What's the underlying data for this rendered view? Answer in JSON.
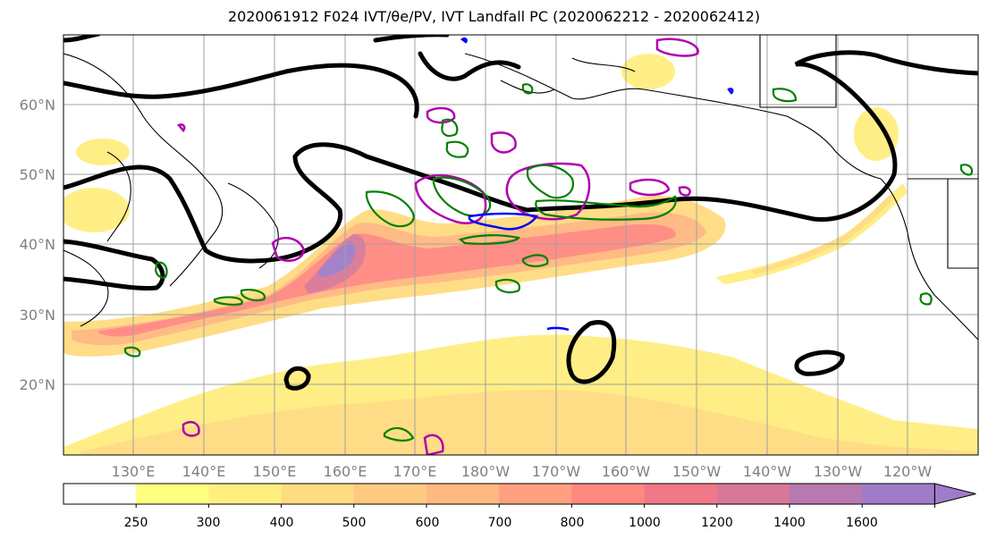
{
  "title": "2020061912 F024 IVT/θe/PV, IVT Landfall PC (2020062212 - 2020062412)",
  "map": {
    "lat_labels": [
      "60°N",
      "50°N",
      "40°N",
      "30°N",
      "20°N"
    ],
    "lon_labels": [
      "130°E",
      "140°E",
      "150°E",
      "160°E",
      "170°E",
      "180°W",
      "170°W",
      "160°W",
      "150°W",
      "140°W",
      "130°W",
      "120°W"
    ]
  },
  "colorbar": {
    "ticks": [
      "250",
      "300",
      "400",
      "500",
      "600",
      "700",
      "800",
      "1000",
      "1200",
      "1400",
      "1600"
    ],
    "colors": [
      "#ffffff",
      "#ffff80",
      "#ffee80",
      "#ffdc80",
      "#ffca80",
      "#ffb880",
      "#ffa080",
      "#ff8880",
      "#f07888",
      "#d87898",
      "#b878b0",
      "#a07cc8"
    ]
  },
  "legend_colors": {
    "theta_e_contour": "#000000",
    "pv_positive": "#b000b0",
    "landfall_pc": "#008000",
    "low_pressure": "#0000ff"
  }
}
